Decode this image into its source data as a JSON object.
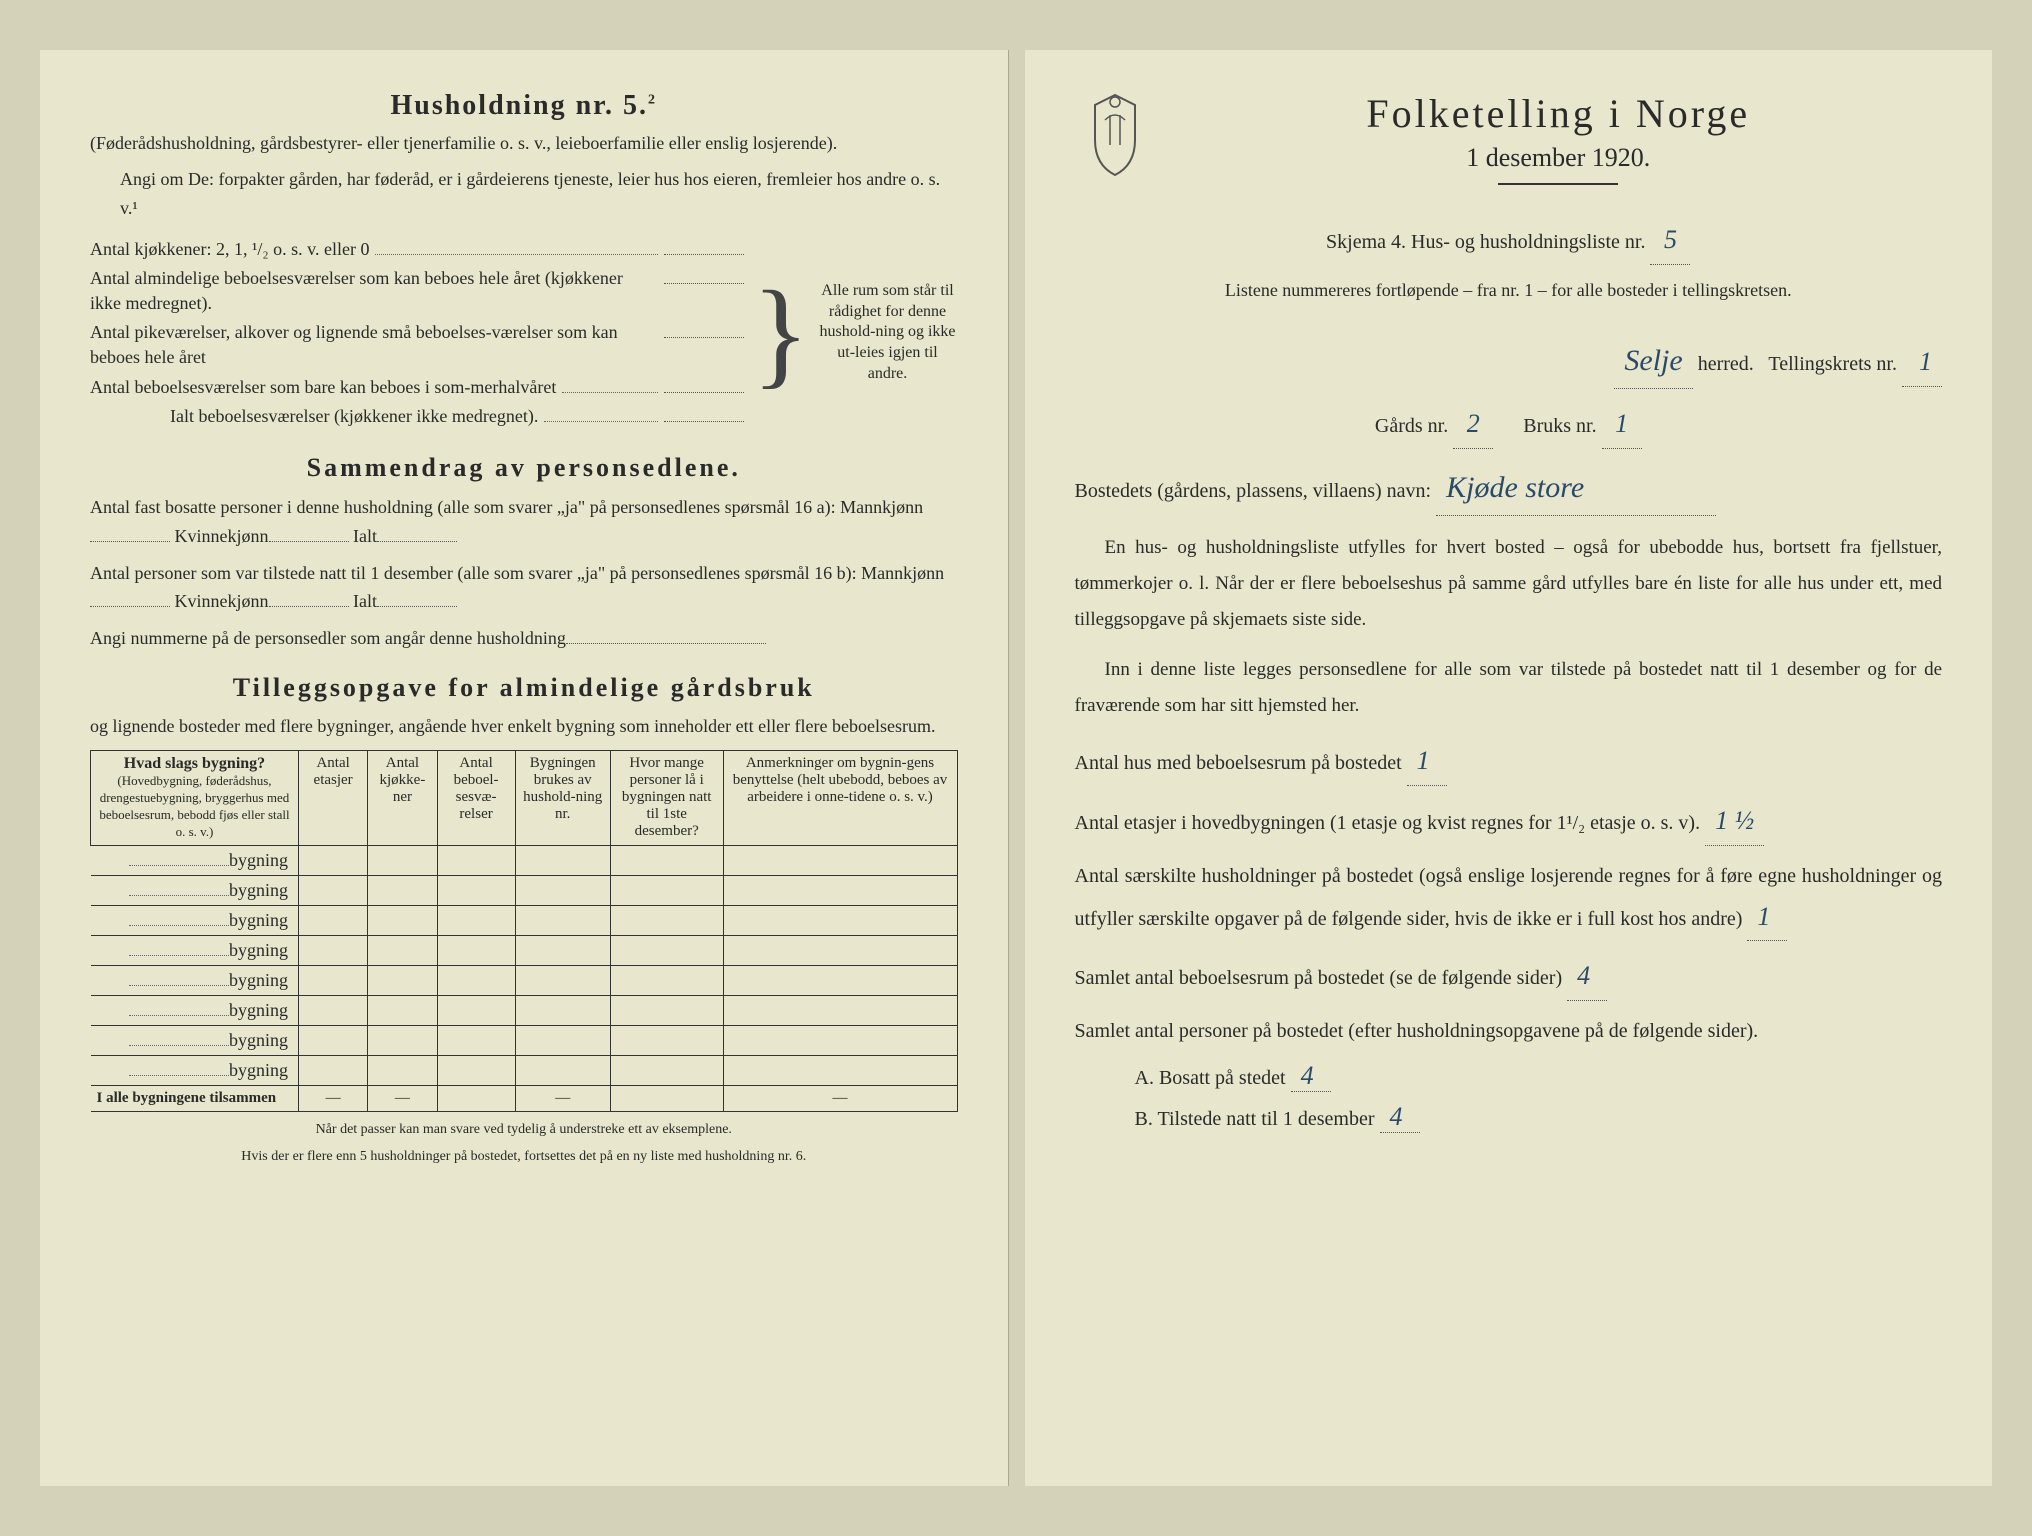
{
  "left": {
    "title": "Husholdning nr. 5.",
    "title_sup": "2",
    "subtitle": "(Føderådshusholdning, gårdsbestyrer- eller tjenerfamilie o. s. v., leieboerfamilie eller enslig losjerende).",
    "angi": "Angi om De: forpakter gården, har føderåd, er i gårdeierens tjeneste, leier hus hos eieren, fremleier hos andre o. s. v.¹",
    "kitchens": "Antal kjøkkener: 2, 1, ¹/₂ o. s. v. eller 0",
    "rooms1": "Antal almindelige beboelsesværelser som kan beboes hele året (kjøkkener ikke medregnet).",
    "rooms2": "Antal pikeværelser, alkover og lignende små beboelses-værelser som kan beboes hele året",
    "rooms3": "Antal beboelsesværelser som bare kan beboes i som-merhalvåret",
    "rooms_total": "Ialt beboelsesværelser (kjøkkener ikke medregnet).",
    "brace_text": "Alle rum som står til rådighet for denne hushold-ning og ikke ut-leies igjen til andre.",
    "summary_title": "Sammendrag av personsedlene.",
    "summary1a": "Antal fast bosatte personer i denne husholdning (alle som svarer „ja\" på personsedlenes spørsmål 16 a): Mannkjønn",
    "summary1b": "Kvinnekjønn",
    "summary1c": "Ialt",
    "summary2a": "Antal personer som var tilstede natt til 1 desember (alle som svarer „ja\" på personsedlenes spørsmål 16 b): Mannkjønn",
    "angi_num": "Angi nummerne på de personsedler som angår denne husholdning",
    "tillegg_title": "Tilleggsopgave for almindelige gårdsbruk",
    "tillegg_sub": "og lignende bosteder med flere bygninger, angående hver enkelt bygning som inneholder ett eller flere beboelsesrum.",
    "th1": "Hvad slags bygning?",
    "th1_sub": "(Hovedbygning, føderådshus, drengestuebygning, bryggerhus med beboelsesrum, bebodd fjøs eller stall o. s. v.)",
    "th2": "Antal etasjer",
    "th3": "Antal kjøkke-ner",
    "th4": "Antal beboel-sesvæ-relser",
    "th5": "Bygningen brukes av hushold-ning nr.",
    "th6": "Hvor mange personer lå i bygningen natt til 1ste desember?",
    "th7": "Anmerkninger om bygnin-gens benyttelse (helt ubebodd, beboes av arbeidere i onne-tidene o. s. v.)",
    "row_label": "bygning",
    "total_row": "I alle bygningene tilsammen",
    "footnote1": "Når det passer kan man svare ved tydelig å understreke ett av eksemplene.",
    "footnote2": "Hvis der er flere enn 5 husholdninger på bostedet, fortsettes det på en ny liste med husholdning nr. 6."
  },
  "right": {
    "main_title": "Folketelling i Norge",
    "date": "1 desember 1920.",
    "schema": "Skjema 4. Hus- og husholdningsliste nr.",
    "schema_val": "5",
    "listene": "Listene nummereres fortløpende – fra nr. 1 – for alle bosteder i tellingskretsen.",
    "herred_val": "Selje",
    "herred_lbl": "herred.",
    "krets_lbl": "Tellingskrets nr.",
    "krets_val": "1",
    "gards_lbl": "Gårds nr.",
    "gards_val": "2",
    "bruks_lbl": "Bruks nr.",
    "bruks_val": "1",
    "bosted_lbl": "Bostedets (gårdens, plassens, villaens) navn:",
    "bosted_val": "Kjøde store",
    "p1": "En hus- og husholdningsliste utfylles for hvert bosted – også for ubebodde hus, bortsett fra fjellstuer, tømmerkojer o. l. Når der er flere beboelseshus på samme gård utfylles bare én liste for alle hus under ett, med tilleggsopgave på skjemaets siste side.",
    "p2": "Inn i denne liste legges personsedlene for alle som var tilstede på bostedet natt til 1 desember og for de fraværende som har sitt hjemsted her.",
    "q1": "Antal hus med beboelsesrum på bostedet",
    "q1_val": "1",
    "q2a": "Antal etasjer i hovedbygningen (1 etasje og kvist regnes for 1¹/₂ etasje o. s. v).",
    "q2_val": "1 ½",
    "q3": "Antal særskilte husholdninger på bostedet (også enslige losjerende regnes for å føre egne husholdninger og utfyller særskilte opgaver på de følgende sider, hvis de ikke er i full kost hos andre)",
    "q3_val": "1",
    "q4": "Samlet antal beboelsesrum på bostedet (se de følgende sider)",
    "q4_val": "4",
    "q5": "Samlet antal personer på bostedet (efter husholdningsopgavene på de følgende sider).",
    "qA": "A. Bosatt på stedet",
    "qA_val": "4",
    "qB": "B. Tilstede natt til 1 desember",
    "qB_val": "4"
  }
}
